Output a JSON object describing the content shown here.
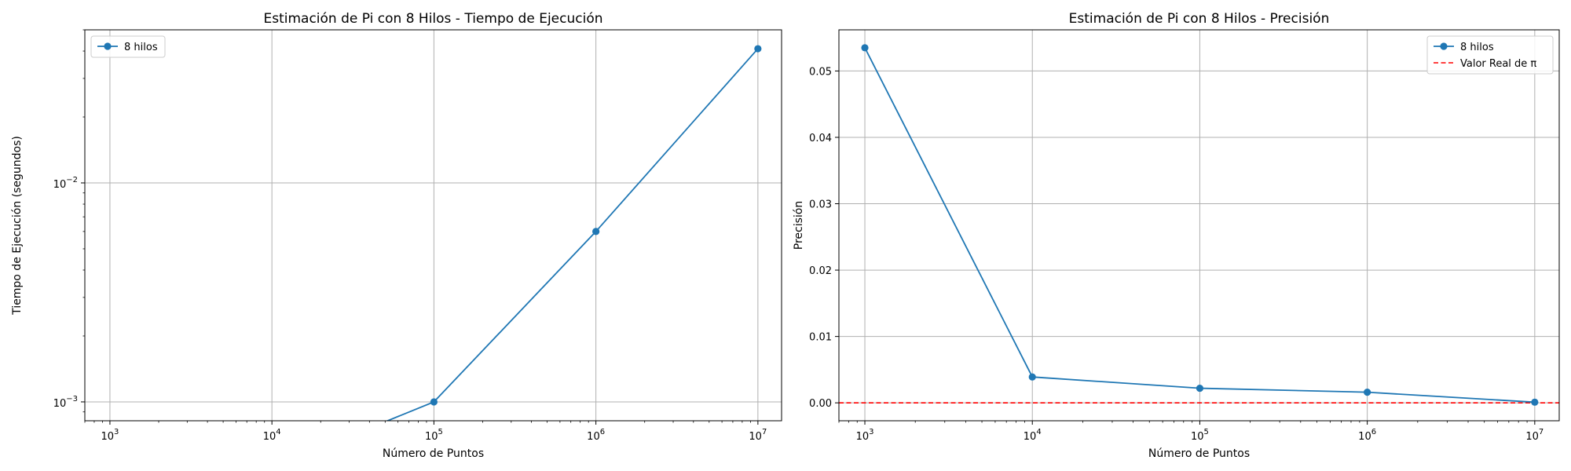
{
  "chart_data": [
    {
      "type": "line",
      "title": "Estimación de Pi con 8 Hilos - Tiempo de Ejecución",
      "xlabel": "Número de Puntos",
      "ylabel": "Tiempo de Ejecución (segundos)",
      "x_scale": "log",
      "y_scale": "log",
      "xlim": [
        700,
        14000000
      ],
      "ylim": [
        0.00082,
        0.05
      ],
      "x_ticks": [
        {
          "value": 1000,
          "base": "10",
          "exp": "3"
        },
        {
          "value": 10000,
          "base": "10",
          "exp": "4"
        },
        {
          "value": 100000,
          "base": "10",
          "exp": "5"
        },
        {
          "value": 1000000,
          "base": "10",
          "exp": "6"
        },
        {
          "value": 10000000,
          "base": "10",
          "exp": "7"
        }
      ],
      "y_ticks": [
        {
          "value": 0.001,
          "base": "10",
          "exp": "−3"
        },
        {
          "value": 0.01,
          "base": "10",
          "exp": "−2"
        }
      ],
      "grid": true,
      "legend_position": "top-left",
      "series": [
        {
          "name": "8 hilos",
          "color": "#1f77b4",
          "x": [
            1000,
            10000,
            100000,
            1000000,
            10000000
          ],
          "y": [
            0,
            0,
            0.001,
            0.006,
            0.041
          ]
        }
      ]
    },
    {
      "type": "line",
      "title": "Estimación de Pi con 8 Hilos - Precisión",
      "xlabel": "Número de Puntos",
      "ylabel": "Precisión",
      "x_scale": "log",
      "y_scale": "linear",
      "xlim": [
        700,
        14000000
      ],
      "ylim": [
        -0.0027,
        0.0562
      ],
      "x_ticks": [
        {
          "value": 1000,
          "base": "10",
          "exp": "3"
        },
        {
          "value": 10000,
          "base": "10",
          "exp": "4"
        },
        {
          "value": 100000,
          "base": "10",
          "exp": "5"
        },
        {
          "value": 1000000,
          "base": "10",
          "exp": "6"
        },
        {
          "value": 10000000,
          "base": "10",
          "exp": "7"
        }
      ],
      "y_ticks": [
        {
          "value": 0,
          "label": "0.00"
        },
        {
          "value": 0.01,
          "label": "0.01"
        },
        {
          "value": 0.02,
          "label": "0.02"
        },
        {
          "value": 0.03,
          "label": "0.03"
        },
        {
          "value": 0.04,
          "label": "0.04"
        },
        {
          "value": 0.05,
          "label": "0.05"
        }
      ],
      "grid": true,
      "legend_position": "top-right",
      "series": [
        {
          "name": "8 hilos",
          "color": "#1f77b4",
          "x": [
            1000,
            10000,
            100000,
            1000000,
            10000000
          ],
          "y": [
            0.0535,
            0.0039,
            0.0022,
            0.0016,
            0.0001
          ]
        }
      ],
      "reference_lines": [
        {
          "name": "Valor Real de π",
          "y": 0,
          "color": "#ff0000",
          "style": "dashed"
        }
      ]
    }
  ]
}
